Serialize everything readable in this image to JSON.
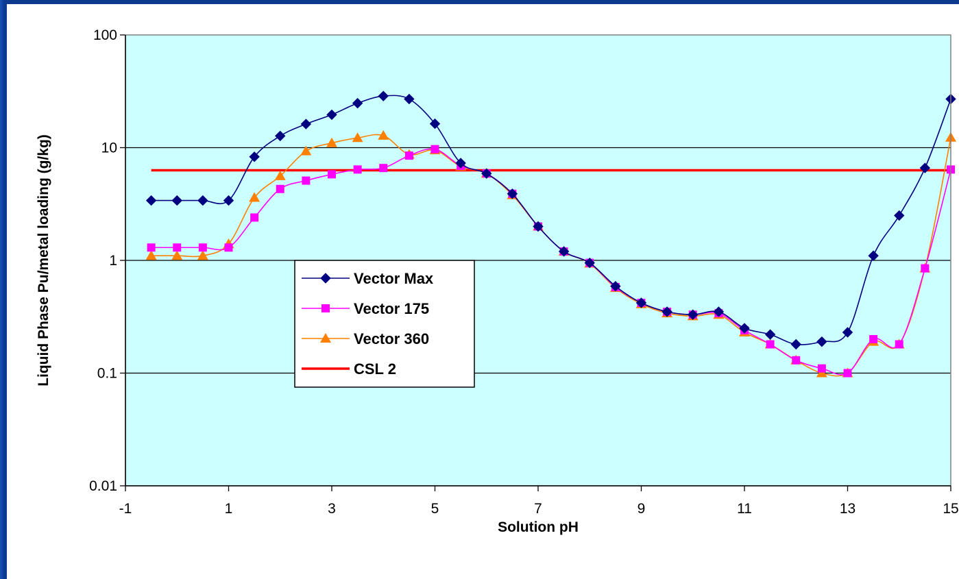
{
  "chart_data": {
    "type": "line",
    "xlabel": "Solution pH",
    "ylabel": "Liquid Phase Pu/metal loading (g/kg)",
    "xlim": [
      -1,
      15
    ],
    "ylim": [
      0.01,
      100
    ],
    "yscale": "log",
    "x_ticks": [
      "-1",
      "1",
      "3",
      "5",
      "7",
      "9",
      "11",
      "13",
      "15"
    ],
    "y_ticks": [
      "0.01",
      "0.1",
      "1",
      "10",
      "100"
    ],
    "grid": "horizontal",
    "legend_position": "center-left",
    "plot_background": "#ccffff",
    "x": [
      -0.5,
      0,
      0.5,
      1,
      1.5,
      2,
      2.5,
      3,
      3.5,
      4,
      4.5,
      5,
      5.5,
      6,
      6.5,
      7,
      7.5,
      8,
      8.5,
      9,
      9.5,
      10,
      10.5,
      11,
      11.5,
      12,
      12.5,
      13,
      13.5,
      14,
      14.5,
      15
    ],
    "series": [
      {
        "name": "Vector Max",
        "color": "#000080",
        "marker": "diamond",
        "values": [
          3.4,
          3.4,
          3.4,
          3.4,
          8.3,
          12.7,
          16.2,
          19.6,
          24.8,
          28.7,
          27.0,
          16.3,
          7.3,
          5.9,
          3.9,
          2.0,
          1.2,
          0.95,
          0.59,
          0.42,
          0.35,
          0.33,
          0.35,
          0.25,
          0.22,
          0.18,
          0.19,
          0.23,
          1.1,
          2.5,
          6.6,
          27.0
        ]
      },
      {
        "name": "Vector 175",
        "color": "#ff00ff",
        "marker": "square",
        "values": [
          1.3,
          1.3,
          1.3,
          1.3,
          2.4,
          4.3,
          5.1,
          5.8,
          6.4,
          6.6,
          8.5,
          9.7,
          6.9,
          5.9,
          3.9,
          2.0,
          1.2,
          0.95,
          0.58,
          0.42,
          0.35,
          0.33,
          0.34,
          0.24,
          0.18,
          0.13,
          0.11,
          0.1,
          0.2,
          0.18,
          0.85,
          6.4
        ]
      },
      {
        "name": "Vector 360",
        "color": "#ff8000",
        "marker": "triangle",
        "values": [
          1.1,
          1.1,
          1.1,
          1.4,
          3.6,
          5.6,
          9.3,
          11.0,
          12.2,
          12.8,
          8.7,
          9.5,
          6.8,
          5.9,
          3.8,
          2.0,
          1.2,
          0.94,
          0.57,
          0.41,
          0.34,
          0.32,
          0.33,
          0.23,
          0.18,
          0.13,
          0.1,
          0.1,
          0.19,
          0.18,
          0.85,
          12.3
        ]
      },
      {
        "name": "CSL 2",
        "color": "#ff0000",
        "marker": "none",
        "x_range": [
          -0.5,
          15
        ],
        "constant": 6.3
      }
    ]
  }
}
